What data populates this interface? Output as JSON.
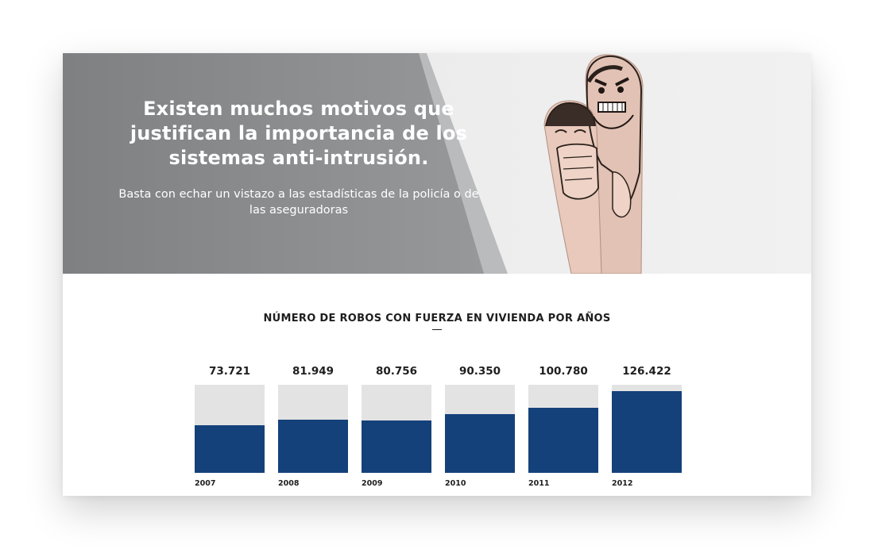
{
  "hero": {
    "title": "Existen muchos motivos que justifican la importancia de los sistemas anti-intrusión.",
    "subtitle": "Basta con echar un vistazo a las estadísticas de la policía o de las aseguradoras",
    "image": "fingers-thief-illustration"
  },
  "colors": {
    "hero_panel": "#8a8c8e",
    "bar_fill": "#14417a",
    "bar_track": "#e3e3e3",
    "text_dark": "#1e1e1e"
  },
  "stats": {
    "title": "NÚMERO DE ROBOS CON FUERZA EN VIVIENDA POR AÑOS"
  },
  "chart_data": {
    "type": "bar",
    "title": "NÚMERO DE ROBOS CON FUERZA EN VIVIENDA POR AÑOS",
    "categories": [
      "2007",
      "2008",
      "2009",
      "2010",
      "2011",
      "2012"
    ],
    "values": [
      73721,
      81949,
      80756,
      90350,
      100780,
      126422
    ],
    "value_labels": [
      "73.721",
      "81.949",
      "80.756",
      "90.350",
      "100.780",
      "126.422"
    ],
    "ylim": [
      0,
      136000
    ],
    "grid": false,
    "legend": "none"
  }
}
